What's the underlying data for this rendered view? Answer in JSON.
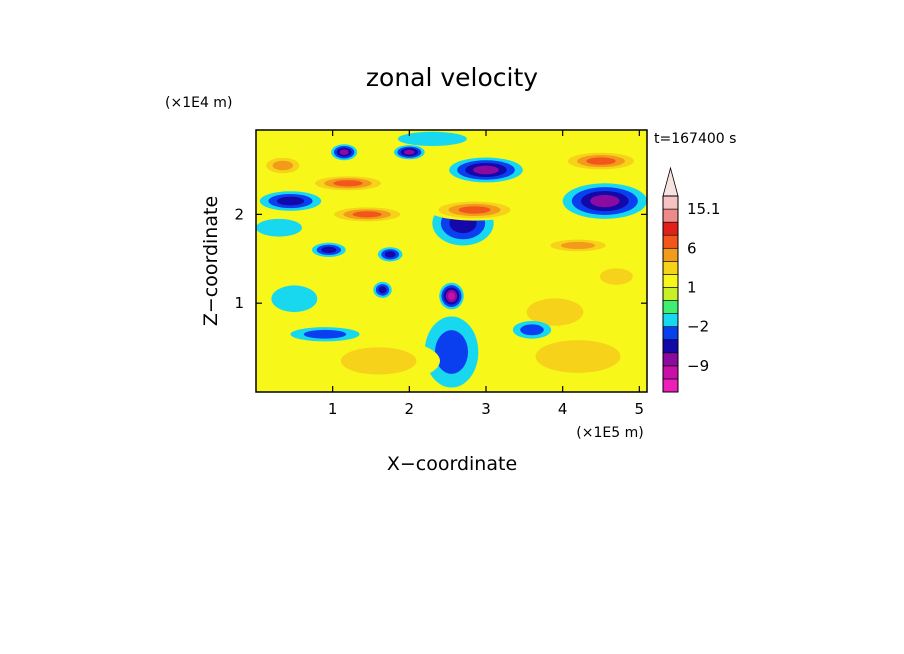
{
  "chart_data": {
    "type": "heatmap",
    "title": "zonal velocity",
    "xlabel": "X−coordinate",
    "ylabel": "Z−coordinate",
    "x_unit": "(×1E5 m)",
    "y_unit": "(×1E4 m)",
    "time_label": "t=167400 s",
    "xlim": [
      0,
      5.1
    ],
    "ylim": [
      0,
      2.95
    ],
    "x_ticks": [
      1,
      2,
      3,
      4,
      5
    ],
    "y_ticks": [
      1,
      2
    ],
    "x_tick_labels": [
      "1",
      "2",
      "3",
      "4",
      "5"
    ],
    "y_tick_labels": [
      "1",
      "2"
    ],
    "colorbar": {
      "levels": [
        -15,
        -12,
        -9,
        -6,
        -4,
        -2,
        -1,
        0,
        1,
        2,
        4,
        6,
        9,
        12,
        15.1
      ],
      "colors": [
        "#ee1fb9",
        "#c810a8",
        "#8b0aa0",
        "#1408a8",
        "#0a3ff0",
        "#18d8f0",
        "#3ef070",
        "#c8f028",
        "#f7f71a",
        "#f7d21a",
        "#f29a1a",
        "#f2561a",
        "#e2201a",
        "#ee8a8a",
        "#f7c2c2"
      ],
      "labels": [
        {
          "value": -9,
          "text": "−9"
        },
        {
          "value": -2,
          "text": "−2"
        },
        {
          "value": 1,
          "text": "1"
        },
        {
          "value": 6,
          "text": "6"
        },
        {
          "value": 15.1,
          "text": "15.1"
        }
      ],
      "extend": "max"
    },
    "field_features": [
      {
        "x": 1.15,
        "z": 2.7,
        "u": -6,
        "rx": 0.17,
        "rz": 0.09
      },
      {
        "x": 2.0,
        "z": 2.7,
        "u": -6,
        "rx": 0.2,
        "rz": 0.08
      },
      {
        "x": 3.0,
        "z": 2.5,
        "u": -7,
        "rx": 0.48,
        "rz": 0.14
      },
      {
        "x": 4.55,
        "z": 2.15,
        "u": -7,
        "rx": 0.55,
        "rz": 0.2
      },
      {
        "x": 0.45,
        "z": 2.15,
        "u": -5,
        "rx": 0.4,
        "rz": 0.11
      },
      {
        "x": 0.95,
        "z": 1.6,
        "u": -5,
        "rx": 0.22,
        "rz": 0.08
      },
      {
        "x": 1.75,
        "z": 1.55,
        "u": -5,
        "rx": 0.16,
        "rz": 0.08
      },
      {
        "x": 2.55,
        "z": 1.08,
        "u": -9,
        "rx": 0.16,
        "rz": 0.15
      },
      {
        "x": 1.65,
        "z": 1.15,
        "u": -5,
        "rx": 0.12,
        "rz": 0.09
      },
      {
        "x": 0.9,
        "z": 0.65,
        "u": -3,
        "rx": 0.45,
        "rz": 0.08
      },
      {
        "x": 2.7,
        "z": 1.9,
        "u": -4,
        "rx": 0.4,
        "rz": 0.25
      },
      {
        "x": 2.55,
        "z": 0.45,
        "u": -2,
        "rx": 0.35,
        "rz": 0.4
      },
      {
        "x": 1.2,
        "z": 2.35,
        "u": 7,
        "rx": 0.55,
        "rz": 0.1
      },
      {
        "x": 1.45,
        "z": 2.0,
        "u": 7,
        "rx": 0.55,
        "rz": 0.1
      },
      {
        "x": 2.85,
        "z": 2.05,
        "u": 8,
        "rx": 0.6,
        "rz": 0.12
      },
      {
        "x": 4.5,
        "z": 2.6,
        "u": 7,
        "rx": 0.55,
        "rz": 0.12
      },
      {
        "x": 0.35,
        "z": 2.55,
        "u": 4,
        "rx": 0.3,
        "rz": 0.12
      },
      {
        "x": 4.2,
        "z": 1.65,
        "u": 5,
        "rx": 0.5,
        "rz": 0.09
      },
      {
        "x": 4.7,
        "z": 1.3,
        "u": 2,
        "rx": 0.35,
        "rz": 0.15
      },
      {
        "x": 1.6,
        "z": 0.35,
        "u": 2,
        "rx": 0.8,
        "rz": 0.25
      },
      {
        "x": 4.2,
        "z": 0.4,
        "u": 2,
        "rx": 0.9,
        "rz": 0.3
      },
      {
        "x": 3.9,
        "z": 0.9,
        "u": 2,
        "rx": 0.6,
        "rz": 0.25
      },
      {
        "x": 0.5,
        "z": 1.05,
        "u": -1,
        "rx": 0.3,
        "rz": 0.15
      },
      {
        "x": 0.3,
        "z": 1.85,
        "u": -1,
        "rx": 0.3,
        "rz": 0.1
      },
      {
        "x": 3.6,
        "z": 0.7,
        "u": -2,
        "rx": 0.25,
        "rz": 0.1
      },
      {
        "x": 2.3,
        "z": 2.85,
        "u": -1,
        "rx": 0.45,
        "rz": 0.08
      }
    ]
  }
}
